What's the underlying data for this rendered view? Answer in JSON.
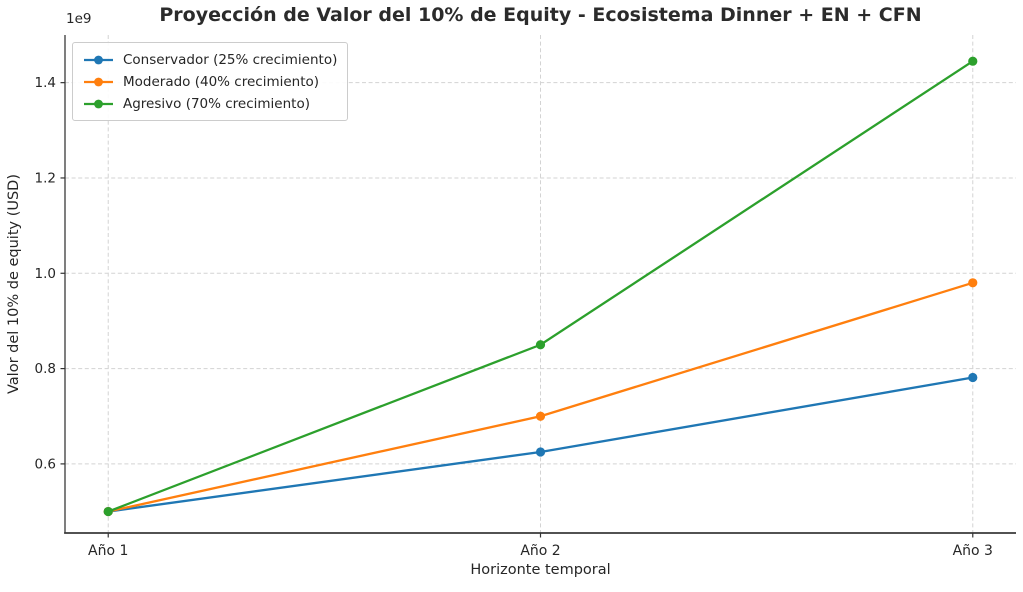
{
  "chart_data": {
    "type": "line",
    "title": "Proyección de Valor del 10% de Equity - Ecosistema Dinner + EN + CFN",
    "xlabel": "Horizonte temporal",
    "ylabel": "Valor del 10% de equity (USD)",
    "categories": [
      "Año 1",
      "Año 2",
      "Año 3"
    ],
    "series": [
      {
        "name": "Conservador (25% crecimiento)",
        "color": "#1f77b4",
        "values": [
          500000000,
          625000000,
          781250000
        ]
      },
      {
        "name": "Moderado (40% crecimiento)",
        "color": "#ff7f0e",
        "values": [
          500000000,
          700000000,
          980000000
        ]
      },
      {
        "name": "Agresivo (70% crecimiento)",
        "color": "#2ca02c",
        "values": [
          500000000,
          850000000,
          1445000000
        ]
      }
    ],
    "y_axis": {
      "offset_label": "1e9",
      "scale": 1000000000,
      "ticks": [
        0.6,
        0.8,
        1.0,
        1.2,
        1.4
      ],
      "tick_labels": [
        "0.6",
        "0.8",
        "1.0",
        "1.2",
        "1.4"
      ],
      "ylim": [
        0.455,
        1.5
      ]
    },
    "x_axis": {
      "xlim": [
        -0.1,
        2.1
      ]
    },
    "grid": {
      "on": true,
      "style": "dashed",
      "color": "#d3d3d3"
    },
    "legend": {
      "position": "upper-left"
    },
    "marker": "circle",
    "background": "#ffffff"
  }
}
